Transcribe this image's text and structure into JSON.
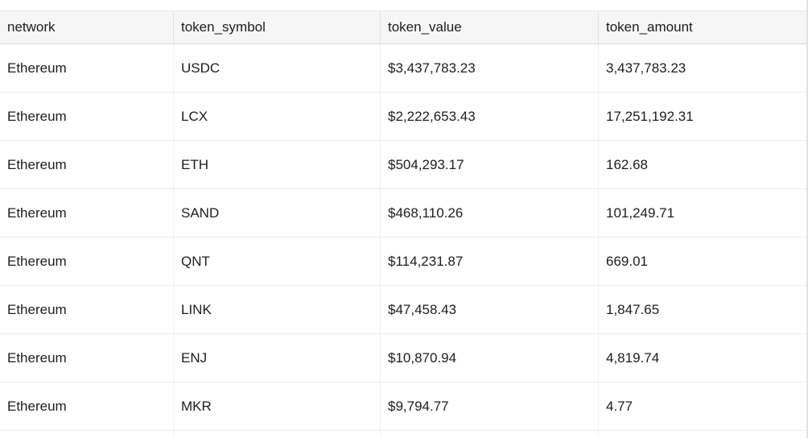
{
  "table": {
    "columns": [
      {
        "key": "network",
        "label": "network"
      },
      {
        "key": "token_symbol",
        "label": "token_symbol"
      },
      {
        "key": "token_value",
        "label": "token_value"
      },
      {
        "key": "token_amount",
        "label": "token_amount"
      }
    ],
    "rows": [
      {
        "network": "Ethereum",
        "token_symbol": "USDC",
        "token_value": "$3,437,783.23",
        "token_amount": "3,437,783.23"
      },
      {
        "network": "Ethereum",
        "token_symbol": "LCX",
        "token_value": "$2,222,653.43",
        "token_amount": "17,251,192.31"
      },
      {
        "network": "Ethereum",
        "token_symbol": "ETH",
        "token_value": "$504,293.17",
        "token_amount": "162.68"
      },
      {
        "network": "Ethereum",
        "token_symbol": "SAND",
        "token_value": "$468,110.26",
        "token_amount": "101,249.71"
      },
      {
        "network": "Ethereum",
        "token_symbol": "QNT",
        "token_value": "$114,231.87",
        "token_amount": "669.01"
      },
      {
        "network": "Ethereum",
        "token_symbol": "LINK",
        "token_value": "$47,458.43",
        "token_amount": "1,847.65"
      },
      {
        "network": "Ethereum",
        "token_symbol": "ENJ",
        "token_value": "$10,870.94",
        "token_amount": "4,819.74"
      },
      {
        "network": "Ethereum",
        "token_symbol": "MKR",
        "token_value": "$9,794.77",
        "token_amount": "4.77"
      }
    ],
    "colors": {
      "header_bg": "#f6f6f6",
      "header_border_bottom": "#d8d8d8",
      "row_border": "#ededed",
      "column_divider": "#f1f1f1",
      "text": "#1d1d1f"
    }
  }
}
